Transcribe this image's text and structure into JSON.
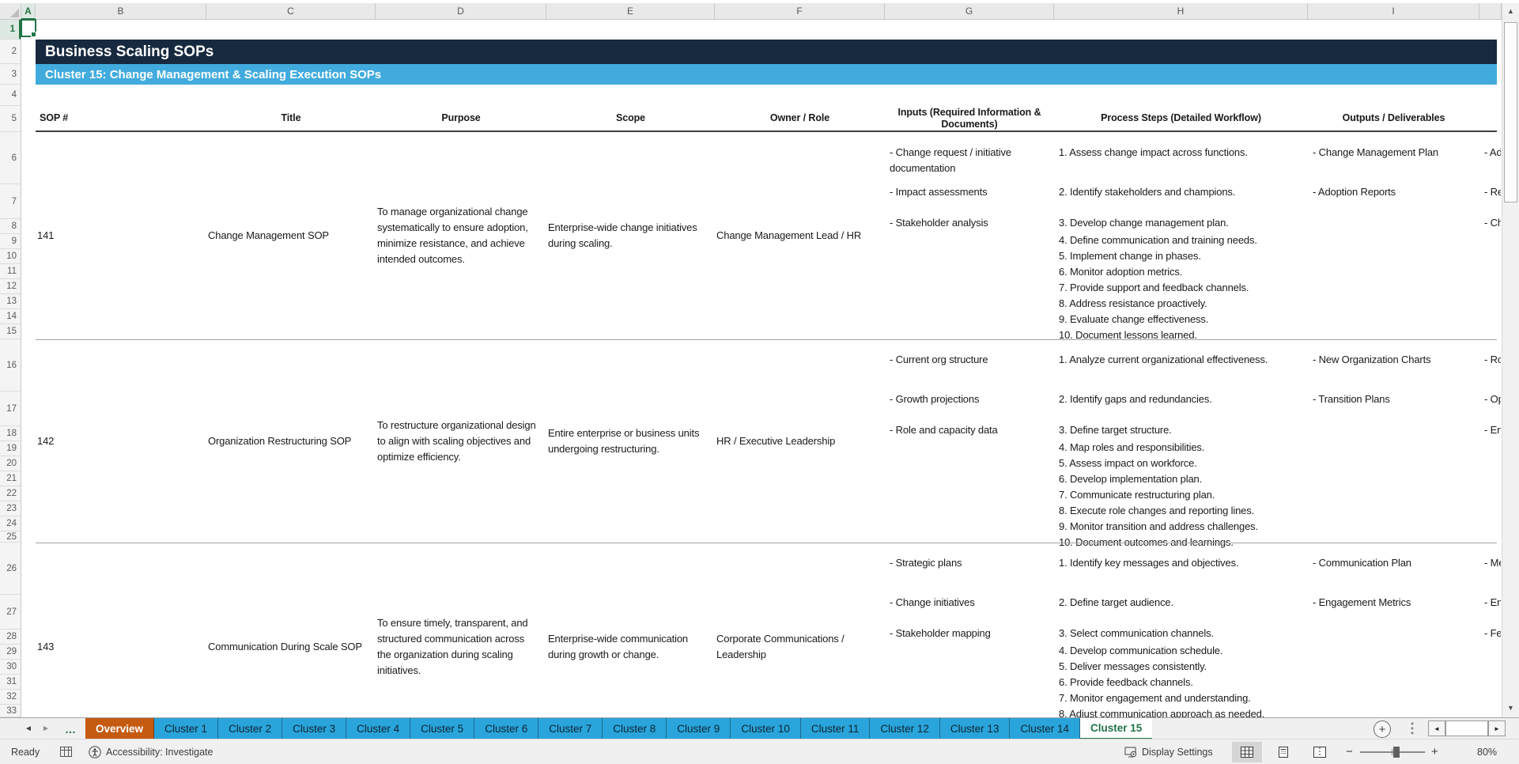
{
  "colors": {
    "title_band": "#17293F",
    "subtitle_band": "#41ABDE",
    "tab_blue": "#2AA5DB",
    "tab_orange": "#C55A11",
    "excel_green": "#217346"
  },
  "icons": {
    "tab_scroll_left": "◄",
    "tab_scroll_right": "►",
    "more_tabs": "…",
    "add_sheet": "+",
    "vscroll_up": "▲",
    "vscroll_down": "▼",
    "hscroll_left": "◄",
    "hscroll_right": "►",
    "zoom_out": "−",
    "zoom_in": "+"
  },
  "sheet": {
    "title": "Business Scaling SOPs",
    "subtitle": "Cluster 15: Change Management & Scaling Execution SOPs",
    "column_letters": [
      "A",
      "B",
      "C",
      "D",
      "E",
      "F",
      "G",
      "H",
      "I"
    ],
    "row_numbers": [
      1,
      2,
      3,
      4,
      5,
      6,
      7,
      8,
      9,
      10,
      11,
      12,
      13,
      14,
      15,
      16,
      17,
      18,
      19,
      20,
      21,
      22,
      23,
      24,
      25,
      26,
      27,
      28,
      29,
      30,
      31,
      32,
      33
    ],
    "table": {
      "headers": [
        "SOP #",
        "Title",
        "Purpose",
        "Scope",
        "Owner / Role",
        "Inputs (Required Information & Documents)",
        "Process Steps (Detailed Workflow)",
        "Outputs / Deliverables"
      ],
      "rows": [
        {
          "sop": "141",
          "title": "Change Management SOP",
          "purpose": "To manage organizational change systematically to ensure adoption, minimize resistance, and achieve intended outcomes.",
          "scope": "Enterprise-wide change initiatives during scaling.",
          "owner": "Change Management Lead / HR",
          "inputs": [
            "- Change request / initiative documentation",
            "- Impact assessments",
            "- Stakeholder analysis"
          ],
          "steps": [
            "1. Assess change impact across functions.",
            "2. Identify stakeholders and champions.",
            "3. Develop change management plan.",
            "4. Define communication and training needs.",
            "5. Implement change in phases.",
            "6. Monitor adoption metrics.",
            "7. Provide support and feedback channels.",
            "8. Address resistance proactively.",
            "9. Evaluate change effectiveness.",
            "10. Document lessons learned."
          ],
          "outputs": [
            "- Change Management Plan",
            "- Adoption Reports"
          ],
          "clipped": [
            "- Ad",
            "- Re",
            "- Ch"
          ]
        },
        {
          "sop": "142",
          "title": "Organization Restructuring SOP",
          "purpose": "To restructure organizational design to align with scaling objectives and optimize efficiency.",
          "scope": "Entire enterprise or business units undergoing restructuring.",
          "owner": "HR / Executive Leadership",
          "inputs": [
            "- Current org structure",
            "- Growth projections",
            "- Role and capacity data"
          ],
          "steps": [
            "1. Analyze current organizational effectiveness.",
            "2. Identify gaps and redundancies.",
            "3. Define target structure.",
            "4. Map roles and responsibilities.",
            "5. Assess impact on workforce.",
            "6. Develop implementation plan.",
            "7. Communicate restructuring plan.",
            "8. Execute role changes and reporting lines.",
            "9. Monitor transition and address challenges.",
            "10. Document outcomes and learnings."
          ],
          "outputs": [
            "- New Organization Charts",
            "- Transition Plans"
          ],
          "clipped": [
            "- Ro",
            "- Op",
            "- En"
          ]
        },
        {
          "sop": "143",
          "title": "Communication During Scale SOP",
          "purpose": "To ensure timely, transparent, and structured communication across the organization during scaling initiatives.",
          "scope": "Enterprise-wide communication during growth or change.",
          "owner": "Corporate Communications / Leadership",
          "inputs": [
            "- Strategic plans",
            "- Change initiatives",
            "- Stakeholder mapping"
          ],
          "steps": [
            "1. Identify key messages and objectives.",
            "2. Define target audience.",
            "3. Select communication channels.",
            "4. Develop communication schedule.",
            "5. Deliver messages consistently.",
            "6. Provide feedback channels.",
            "7. Monitor engagement and understanding.",
            "8. Adjust communication approach as needed."
          ],
          "outputs": [
            "- Communication Plan",
            "- Engagement Metrics"
          ],
          "clipped": [
            "- Me",
            "- En",
            "- Fe"
          ]
        }
      ]
    }
  },
  "tab_bar": {
    "overview_label": "Overview",
    "cluster_labels": [
      "Cluster 1",
      "Cluster 2",
      "Cluster 3",
      "Cluster 4",
      "Cluster 5",
      "Cluster 6",
      "Cluster 7",
      "Cluster 8",
      "Cluster 9",
      "Cluster 10",
      "Cluster 11",
      "Cluster 12",
      "Cluster 13",
      "Cluster 14"
    ],
    "active_label": "Cluster 15"
  },
  "status_bar": {
    "ready_label": "Ready",
    "accessibility_label": "Accessibility: Investigate",
    "display_settings_label": "Display Settings",
    "zoom_percent": "80%"
  }
}
